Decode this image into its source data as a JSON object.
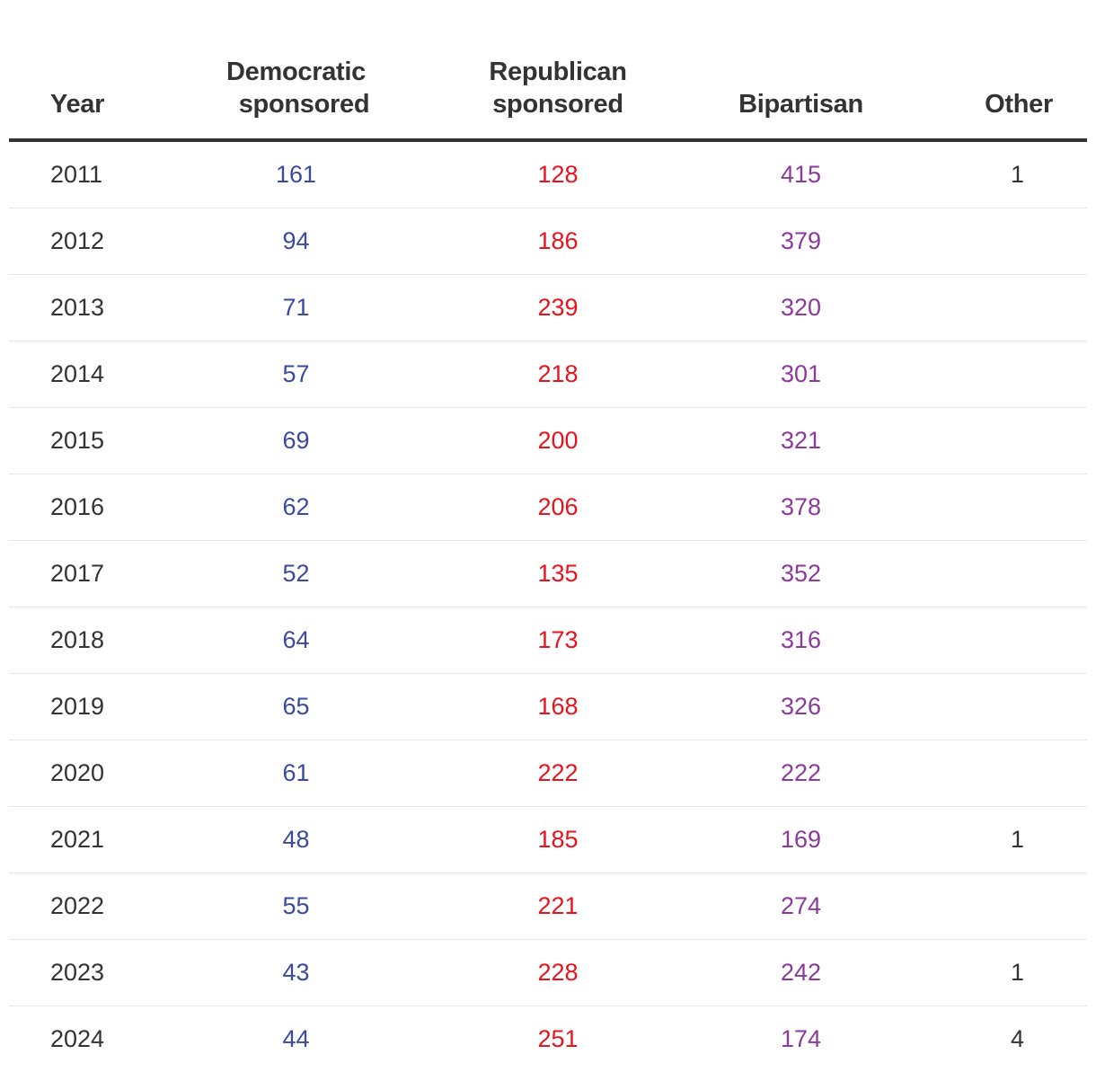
{
  "colors": {
    "democratic": "#3a4aa0",
    "republican": "#e8131d",
    "bipartisan": "#8b3a9c",
    "text": "#333333"
  },
  "chart_data": {
    "type": "table",
    "columns": [
      "Year",
      "Democratic\nsponsored",
      "Republican\nsponsored",
      "Bipartisan",
      "Other"
    ],
    "rows": [
      [
        "2011",
        "161",
        "128",
        "415",
        "1"
      ],
      [
        "2012",
        "94",
        "186",
        "379",
        ""
      ],
      [
        "2013",
        "71",
        "239",
        "320",
        ""
      ],
      [
        "2014",
        "57",
        "218",
        "301",
        ""
      ],
      [
        "2015",
        "69",
        "200",
        "321",
        ""
      ],
      [
        "2016",
        "62",
        "206",
        "378",
        ""
      ],
      [
        "2017",
        "52",
        "135",
        "352",
        ""
      ],
      [
        "2018",
        "64",
        "173",
        "316",
        ""
      ],
      [
        "2019",
        "65",
        "168",
        "326",
        ""
      ],
      [
        "2020",
        "61",
        "222",
        "222",
        ""
      ],
      [
        "2021",
        "48",
        "185",
        "169",
        "1"
      ],
      [
        "2022",
        "55",
        "221",
        "274",
        ""
      ],
      [
        "2023",
        "43",
        "228",
        "242",
        "1"
      ],
      [
        "2024",
        "44",
        "251",
        "174",
        "4"
      ]
    ]
  }
}
